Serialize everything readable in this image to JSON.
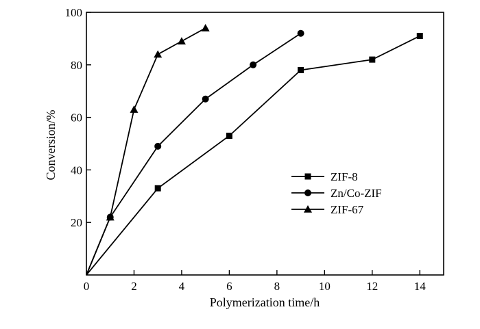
{
  "chart_data": {
    "type": "line",
    "title": "",
    "xlabel": "Polymerization time/h",
    "ylabel": "Conversion/%",
    "xlim": [
      0,
      15
    ],
    "ylim": [
      0,
      100
    ],
    "xticks": [
      0,
      2,
      4,
      6,
      8,
      10,
      12,
      14
    ],
    "yticks": [
      20,
      40,
      60,
      80,
      100
    ],
    "grid": false,
    "legend_position": "center-right",
    "series": [
      {
        "name": "ZIF-8",
        "marker": "square",
        "x": [
          0,
          3,
          6,
          9,
          12,
          14
        ],
        "y": [
          0,
          33,
          53,
          78,
          82,
          91
        ]
      },
      {
        "name": "Zn/Co-ZIF",
        "marker": "circle",
        "x": [
          0,
          1,
          3,
          5,
          7,
          9
        ],
        "y": [
          0,
          22,
          49,
          67,
          80,
          92
        ]
      },
      {
        "name": "ZIF-67",
        "marker": "triangle",
        "x": [
          0,
          1,
          2,
          3,
          4,
          5
        ],
        "y": [
          0,
          22,
          63,
          84,
          89,
          94
        ]
      }
    ]
  }
}
